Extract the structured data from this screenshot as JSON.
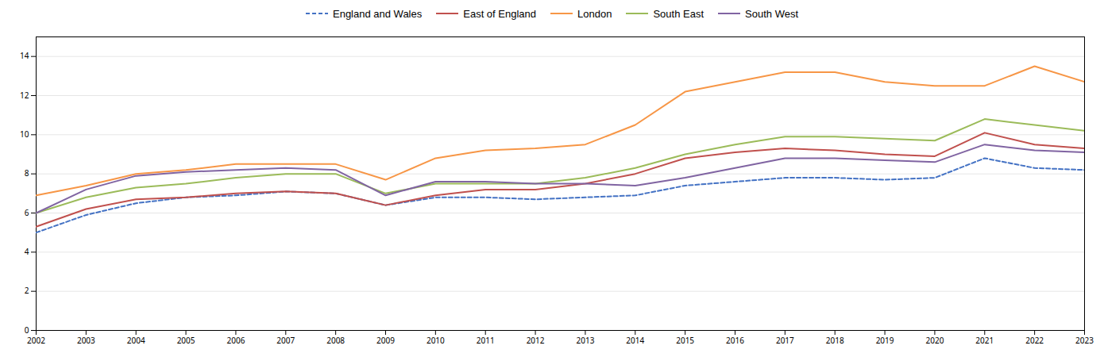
{
  "chart_data": {
    "type": "line",
    "x": [
      2002,
      2003,
      2004,
      2005,
      2006,
      2007,
      2008,
      2009,
      2010,
      2011,
      2012,
      2013,
      2014,
      2015,
      2016,
      2017,
      2018,
      2019,
      2020,
      2021,
      2022,
      2023
    ],
    "series": [
      {
        "name": "England and Wales",
        "color": "#4472C4",
        "line_style": "dashed",
        "values": [
          5.0,
          5.9,
          6.5,
          6.8,
          6.9,
          7.1,
          7.0,
          6.4,
          6.8,
          6.8,
          6.7,
          6.8,
          6.9,
          7.4,
          7.6,
          7.8,
          7.8,
          7.7,
          7.8,
          8.8,
          8.3,
          8.2
        ]
      },
      {
        "name": "East of England",
        "color": "#C0504D",
        "line_style": "solid",
        "values": [
          5.3,
          6.2,
          6.7,
          6.8,
          7.0,
          7.1,
          7.0,
          6.4,
          6.9,
          7.2,
          7.2,
          7.5,
          8.0,
          8.8,
          9.1,
          9.3,
          9.2,
          9.0,
          8.9,
          10.1,
          9.5,
          9.3
        ]
      },
      {
        "name": "London",
        "color": "#F79646",
        "line_style": "solid",
        "values": [
          6.9,
          7.4,
          8.0,
          8.2,
          8.5,
          8.5,
          8.5,
          7.7,
          8.8,
          9.2,
          9.3,
          9.5,
          10.5,
          12.2,
          12.7,
          13.2,
          13.2,
          12.7,
          12.5,
          12.5,
          13.5,
          12.7
        ]
      },
      {
        "name": "South East",
        "color": "#9BBB59",
        "line_style": "solid",
        "values": [
          6.0,
          6.8,
          7.3,
          7.5,
          7.8,
          8.0,
          8.0,
          7.0,
          7.5,
          7.5,
          7.5,
          7.8,
          8.3,
          9.0,
          9.5,
          9.9,
          9.9,
          9.8,
          9.7,
          10.8,
          10.5,
          10.2
        ]
      },
      {
        "name": "South West",
        "color": "#8064A2",
        "line_style": "solid",
        "values": [
          6.0,
          7.2,
          7.9,
          8.1,
          8.2,
          8.3,
          8.2,
          6.9,
          7.6,
          7.6,
          7.5,
          7.5,
          7.4,
          7.8,
          8.3,
          8.8,
          8.8,
          8.7,
          8.6,
          9.5,
          9.2,
          9.1
        ]
      }
    ],
    "xlim": [
      2002,
      2023
    ],
    "xticks": [
      2002,
      2003,
      2004,
      2005,
      2006,
      2007,
      2008,
      2009,
      2010,
      2011,
      2012,
      2013,
      2014,
      2015,
      2016,
      2017,
      2018,
      2019,
      2020,
      2021,
      2022,
      2023
    ],
    "ylim": [
      0,
      15
    ],
    "yticks": [
      0,
      2,
      4,
      6,
      8,
      10,
      12,
      14
    ],
    "grid": true,
    "legend": "top"
  }
}
